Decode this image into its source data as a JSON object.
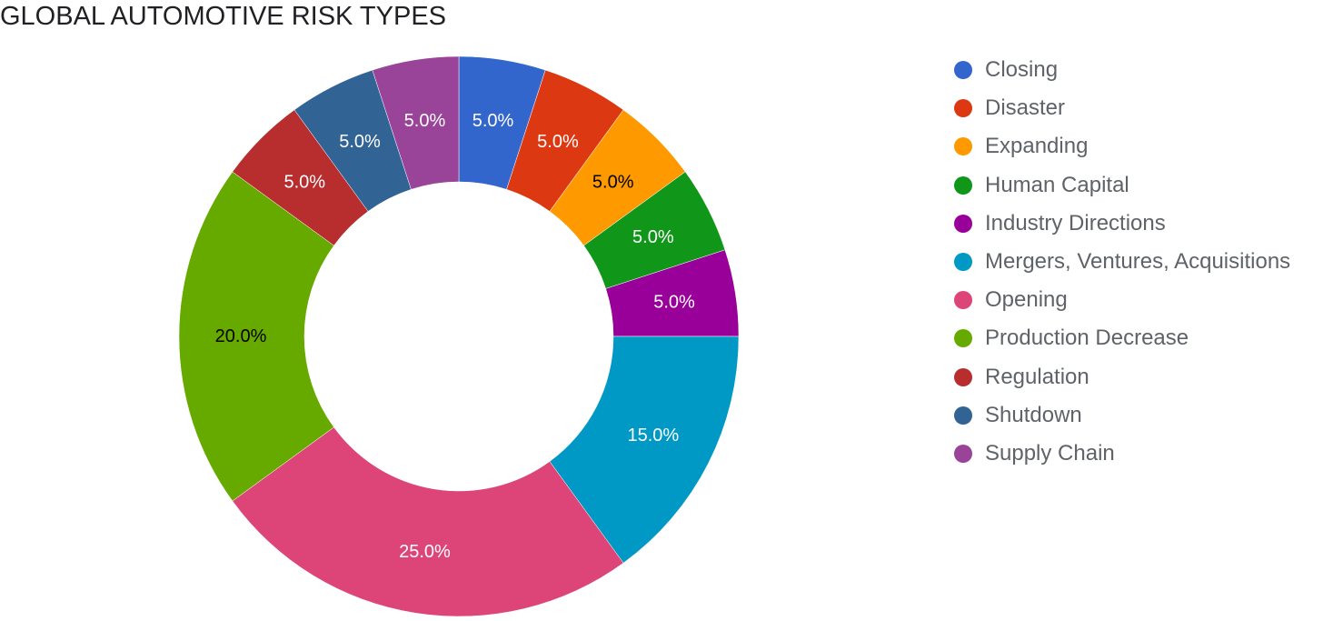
{
  "chart_data": {
    "type": "pie",
    "donut": true,
    "title": "GLOBAL AUTOMOTIVE RISK TYPES",
    "legend_position": "right",
    "slices": [
      {
        "name": "Closing",
        "value": 5.0,
        "label": "5.0%",
        "color": "#3366cc",
        "label_color": "#ffffff"
      },
      {
        "name": "Disaster",
        "value": 5.0,
        "label": "5.0%",
        "color": "#dc3912",
        "label_color": "#ffffff"
      },
      {
        "name": "Expanding",
        "value": 5.0,
        "label": "5.0%",
        "color": "#ff9900",
        "label_color": "#000000"
      },
      {
        "name": "Human Capital",
        "value": 5.0,
        "label": "5.0%",
        "color": "#109618",
        "label_color": "#ffffff"
      },
      {
        "name": "Industry Directions",
        "value": 5.0,
        "label": "5.0%",
        "color": "#990099",
        "label_color": "#ffffff"
      },
      {
        "name": "Mergers, Ventures, Acquisitions",
        "value": 15.0,
        "label": "15.0%",
        "color": "#0099c6",
        "label_color": "#ffffff"
      },
      {
        "name": "Opening",
        "value": 25.0,
        "label": "25.0%",
        "color": "#dd4477",
        "label_color": "#ffffff"
      },
      {
        "name": "Production Decrease",
        "value": 20.0,
        "label": "20.0%",
        "color": "#66aa00",
        "label_color": "#000000"
      },
      {
        "name": "Regulation",
        "value": 5.0,
        "label": "5.0%",
        "color": "#b82e2e",
        "label_color": "#ffffff"
      },
      {
        "name": "Shutdown",
        "value": 5.0,
        "label": "5.0%",
        "color": "#316395",
        "label_color": "#ffffff"
      },
      {
        "name": "Supply Chain",
        "value": 5.0,
        "label": "5.0%",
        "color": "#994499",
        "label_color": "#ffffff"
      }
    ]
  }
}
